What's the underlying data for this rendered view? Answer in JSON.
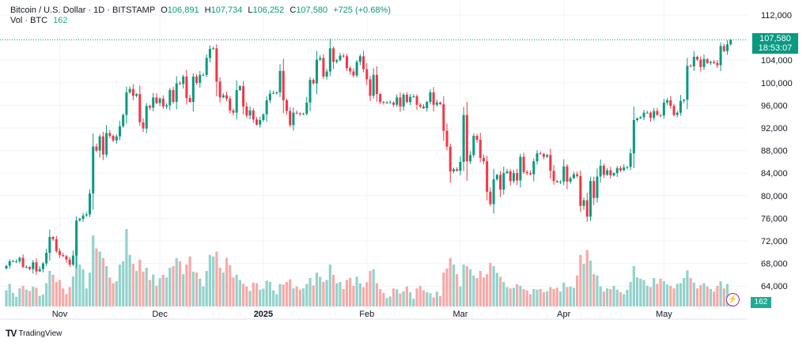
{
  "legend": {
    "symbol": "Bitcoin / U.S. Dollar · 1D · BITSTAMP",
    "open_label": "O",
    "open": "106,891",
    "high_label": "H",
    "high": "107,734",
    "low_label": "L",
    "low": "106,252",
    "close_label": "C",
    "close": "107,580",
    "change": "+725 (+0.68%)",
    "volume_label": "Vol · BTC",
    "volume": "162"
  },
  "price_axis": {
    "ticks": [
      "112,000",
      "104,000",
      "100,000",
      "96,000",
      "92,000",
      "88,000",
      "84,000",
      "80,000",
      "76,000",
      "72,000",
      "68,000",
      "64,000"
    ],
    "current_price": "107,580",
    "countdown": "18:53:07",
    "current_volume": "162"
  },
  "time_axis": {
    "labels": [
      "Nov",
      "Dec",
      "2025",
      "Feb",
      "Mar",
      "Apr",
      "May"
    ]
  },
  "branding": {
    "logo_text": "TradingView"
  },
  "colors": {
    "up": "#089981",
    "down": "#f23645",
    "vol_up": "#92d2cc",
    "vol_down": "#f7a9a7",
    "accent": "#9c27b0"
  },
  "chart_data": {
    "type": "candlestick",
    "interval": "1D",
    "start_date": "2024-10-16",
    "end_date": "2025-05-21",
    "ylim": [
      62000,
      114000
    ],
    "closes": [
      67600,
      68400,
      68400,
      68400,
      69000,
      67400,
      67400,
      67000,
      68200,
      66600,
      67000,
      68000,
      69900,
      72700,
      72300,
      70200,
      69500,
      69300,
      68700,
      67800,
      69400,
      75600,
      75900,
      76500,
      76700,
      80400,
      88700,
      88000,
      90500,
      87300,
      91100,
      90600,
      89800,
      90500,
      92300,
      94300,
      98300,
      98900,
      97700,
      98000,
      93000,
      91900,
      95900,
      95600,
      97400,
      96400,
      97200,
      95800,
      96000,
      98700,
      96600,
      99900,
      99800,
      101100,
      97300,
      96600,
      101100,
      100000,
      101400,
      101400,
      104400,
      106000,
      106100,
      100200,
      97400,
      97800,
      97200,
      95100,
      94700,
      98700,
      99400,
      95800,
      94200,
      95100,
      93500,
      92600,
      93400,
      94400,
      96900,
      98100,
      98200,
      98300,
      102100,
      96900,
      95000,
      92500,
      94700,
      94600,
      94500,
      94500,
      96500,
      100500,
      99900,
      104100,
      104400,
      101100,
      102000,
      106100,
      103700,
      104000,
      104800,
      104700,
      102600,
      102000,
      101300,
      103700,
      104700,
      102400,
      100600,
      97700,
      101400,
      98000,
      96600,
      96500,
      96500,
      96500,
      96100,
      97400,
      95800,
      97900,
      96600,
      97500,
      97600,
      96100,
      95800,
      95500,
      96600,
      98300,
      96100,
      96500,
      96200,
      91500,
      88700,
      84300,
      84700,
      84400,
      86000,
      94300,
      86100,
      87200,
      90600,
      89900,
      86700,
      86100,
      80700,
      78500,
      82900,
      83700,
      81100,
      84000,
      84300,
      82600,
      84000,
      82700,
      86900,
      84200,
      84000,
      83800,
      86100,
      87500,
      87400,
      86900,
      87200,
      84400,
      82600,
      82400,
      82500,
      85200,
      82500,
      83100,
      83800,
      83500,
      78200,
      79200,
      76300,
      82600,
      79600,
      83400,
      85300,
      83700,
      84500,
      83600,
      84000,
      84900,
      84500,
      85000,
      85100,
      87500,
      93400,
      93700,
      93900,
      94700,
      94700,
      93800,
      95000,
      94300,
      94200,
      96500,
      96900,
      95900,
      94300,
      94700,
      96800,
      97000,
      103000,
      102900,
      104600,
      104100,
      102800,
      104200,
      103500,
      103700,
      103500,
      103100,
      106500,
      105600,
      106800,
      107580
    ],
    "first_open": 67100,
    "volumes": [
      500,
      700,
      420,
      300,
      560,
      640,
      520,
      480,
      610,
      580,
      330,
      370,
      720,
      1100,
      980,
      760,
      820,
      560,
      380,
      600,
      930,
      1900,
      1300,
      1150,
      560,
      1050,
      2200,
      1800,
      1700,
      1500,
      1250,
      900,
      720,
      780,
      1300,
      1400,
      2400,
      1600,
      1320,
      1100,
      1450,
      1080,
      1200,
      820,
      990,
      640,
      880,
      980,
      900,
      1200,
      1250,
      1500,
      1400,
      1000,
      1300,
      1550,
      1080,
      1050,
      860,
      620,
      1100,
      1600,
      1550,
      1700,
      1200,
      1050,
      1500,
      1280,
      900,
      980,
      820,
      700,
      620,
      480,
      740,
      720,
      520,
      550,
      800,
      760,
      500,
      380,
      700,
      680,
      760,
      840,
      560,
      620,
      520,
      560,
      700,
      880,
      650,
      1050,
      920,
      760,
      820,
      1300,
      980,
      720,
      760,
      540,
      820,
      880,
      640,
      920,
      720,
      600,
      750,
      1100,
      1150,
      720,
      540,
      420,
      260,
      310,
      560,
      530,
      400,
      470,
      620,
      440,
      240,
      560,
      640,
      500,
      440,
      410,
      280,
      460,
      320,
      1050,
      1180,
      1500,
      1300,
      1000,
      620,
      1300,
      1250,
      1150,
      960,
      880,
      1100,
      900,
      1000,
      1350,
      1250,
      1040,
      920,
      760,
      600,
      560,
      580,
      690,
      640,
      540,
      500,
      380,
      540,
      520,
      540,
      440,
      470,
      600,
      540,
      580,
      460,
      740,
      600,
      620,
      580,
      960,
      1600,
      1320,
      1750,
      1420,
      1000,
      960,
      620,
      460,
      560,
      540,
      640,
      520,
      440,
      380,
      520,
      760,
      1250,
      900,
      860,
      820,
      640,
      600,
      880,
      700,
      860,
      780,
      680,
      640,
      560,
      700,
      720,
      880,
      1120,
      880,
      740,
      560,
      660,
      720,
      620,
      540,
      460,
      640,
      780,
      560,
      700,
      162
    ]
  }
}
